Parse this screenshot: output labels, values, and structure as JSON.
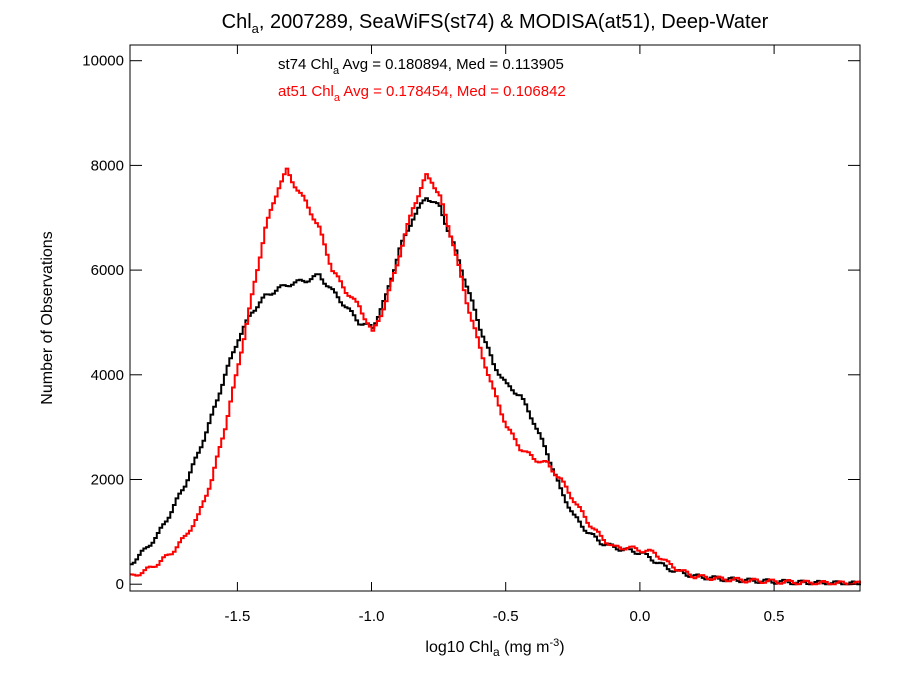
{
  "chart_data": {
    "type": "line",
    "title_parts": [
      "Chl",
      "a",
      ", 2007289, SeaWiFS(st74) & MODISA(at51), Deep-Water"
    ],
    "xlabel_parts": [
      "log10 Chl",
      "a",
      " (mg m",
      "-3",
      ")"
    ],
    "ylabel": "Number of Observations",
    "xlim": [
      -1.9,
      0.82
    ],
    "ylim": [
      -130,
      10300
    ],
    "x_ticks": [
      -1.5,
      -1.0,
      -0.5,
      0.0,
      0.5
    ],
    "x_tick_labels": [
      "-1.5",
      "-1.0",
      "-0.5",
      "0.0",
      "0.5"
    ],
    "y_ticks": [
      0,
      2000,
      4000,
      6000,
      8000,
      10000
    ],
    "y_tick_labels": [
      "0",
      "2000",
      "4000",
      "6000",
      "8000",
      "10000"
    ],
    "grid": false,
    "step": true,
    "annotations": [
      {
        "parts": [
          "st74 Chl",
          "a",
          " Avg = 0.180894, Med = 0.113905"
        ],
        "color": "#000000"
      },
      {
        "parts": [
          "at51 Chl",
          "a",
          " Avg = 0.178454, Med = 0.106842"
        ],
        "color": "#ff0000"
      }
    ],
    "series": [
      {
        "color": "#000000",
        "x": [
          -1.9,
          -1.85,
          -1.8,
          -1.75,
          -1.7,
          -1.65,
          -1.6,
          -1.55,
          -1.5,
          -1.45,
          -1.4,
          -1.35,
          -1.3,
          -1.25,
          -1.2,
          -1.15,
          -1.1,
          -1.05,
          -1.0,
          -0.95,
          -0.9,
          -0.85,
          -0.8,
          -0.75,
          -0.7,
          -0.65,
          -0.6,
          -0.55,
          -0.5,
          -0.45,
          -0.4,
          -0.35,
          -0.3,
          -0.25,
          -0.2,
          -0.15,
          -0.1,
          -0.05,
          0.0,
          0.05,
          0.1,
          0.15,
          0.2,
          0.3,
          0.4,
          0.5,
          0.6,
          0.7,
          0.82
        ],
        "y": [
          400,
          650,
          950,
          1400,
          1900,
          2500,
          3200,
          4000,
          4700,
          5200,
          5500,
          5650,
          5750,
          5800,
          5900,
          5600,
          5300,
          5000,
          4900,
          5500,
          6400,
          7000,
          7400,
          7200,
          6500,
          5700,
          4900,
          4200,
          3800,
          3600,
          3100,
          2500,
          1800,
          1300,
          1000,
          800,
          700,
          650,
          600,
          450,
          300,
          220,
          150,
          100,
          70,
          50,
          30,
          20,
          10
        ]
      },
      {
        "color": "#ff0000",
        "x": [
          -1.9,
          -1.85,
          -1.8,
          -1.75,
          -1.7,
          -1.65,
          -1.6,
          -1.55,
          -1.5,
          -1.45,
          -1.4,
          -1.35,
          -1.32,
          -1.3,
          -1.25,
          -1.2,
          -1.15,
          -1.1,
          -1.05,
          -1.0,
          -0.95,
          -0.9,
          -0.85,
          -0.8,
          -0.78,
          -0.75,
          -0.7,
          -0.65,
          -0.6,
          -0.55,
          -0.5,
          -0.45,
          -0.4,
          -0.35,
          -0.3,
          -0.25,
          -0.2,
          -0.15,
          -0.1,
          -0.05,
          0.0,
          0.05,
          0.1,
          0.15,
          0.2,
          0.3,
          0.4,
          0.5,
          0.6,
          0.7,
          0.82
        ],
        "y": [
          150,
          250,
          400,
          600,
          900,
          1300,
          2000,
          3000,
          4200,
          5500,
          6800,
          7600,
          7900,
          7700,
          7300,
          6800,
          6000,
          5600,
          5300,
          4800,
          5400,
          6300,
          7200,
          7800,
          7700,
          7400,
          6500,
          5400,
          4500,
          3700,
          3000,
          2600,
          2400,
          2300,
          2000,
          1600,
          1200,
          900,
          700,
          700,
          650,
          600,
          400,
          250,
          150,
          100,
          70,
          50,
          30,
          20,
          10
        ]
      }
    ]
  }
}
